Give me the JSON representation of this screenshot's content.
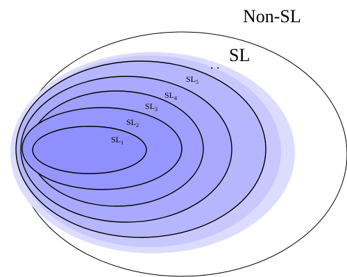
{
  "diagram": {
    "outer_label": "Non-SL",
    "sl_label": "SL",
    "dots": ". .",
    "levels": [
      {
        "base": "SL",
        "sub": "1"
      },
      {
        "base": "SL",
        "sub": "2"
      },
      {
        "base": "SL",
        "sub": "3"
      },
      {
        "base": "SL",
        "sub": "4"
      },
      {
        "base": "SL",
        "sub": "5"
      }
    ]
  },
  "colors": {
    "outer_stroke": "#000000",
    "light_fill": "#dcdcff",
    "mid_fill": "#b6b6ff",
    "inner_fill": "#8f8fff",
    "ring_stroke": "#000000"
  }
}
